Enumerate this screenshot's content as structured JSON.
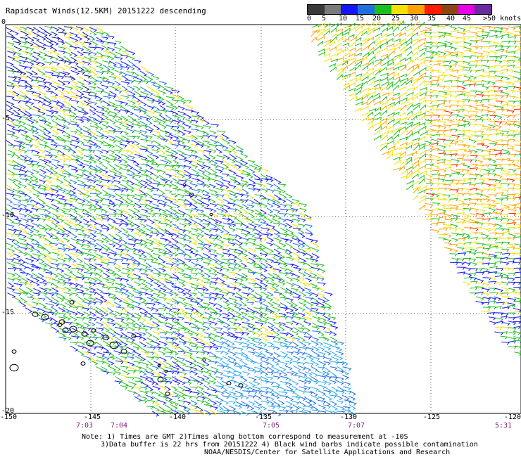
{
  "title": "Rapidscat Winds(12.5KM) 20151222 descending",
  "legend": {
    "labels": [
      "0",
      "5",
      "10",
      "15",
      "20",
      "25",
      "30",
      "35",
      "40",
      "45",
      ">50 knots"
    ],
    "colors": [
      "#3a3a3a",
      "#7a7a7a",
      "#1414ff",
      "#1f6fe0",
      "#19c019",
      "#f5e100",
      "#ffa000",
      "#ff1a00",
      "#8b4513",
      "#e600e6",
      "#6a2aa0"
    ]
  },
  "latitude_labels": [
    "0",
    "-5",
    "-10",
    "-15",
    "-20"
  ],
  "longitude_labels": [
    "-150",
    "-145",
    "-140",
    "-135",
    "-130",
    "-125",
    "-120"
  ],
  "time_labels": [
    "7:03",
    "7:04",
    "7:05",
    "7:07",
    "5:31"
  ],
  "notes": {
    "line1": "Note: 1) Times are GMT 2)Times along bottom correspond to measurement at -10S",
    "line2": "3)Data buffer is 22 hrs from 20151222 4) Black wind barbs indicate possible contamination",
    "line3": "NOAA/NESDIS/Center for Satellite Applications and Research"
  }
}
